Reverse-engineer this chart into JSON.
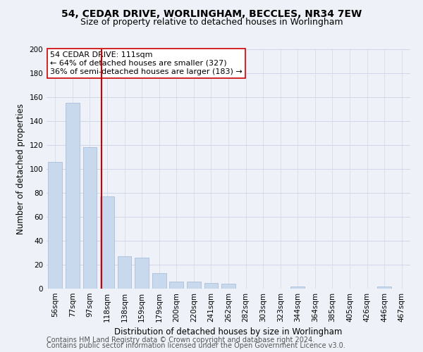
{
  "title": "54, CEDAR DRIVE, WORLINGHAM, BECCLES, NR34 7EW",
  "subtitle": "Size of property relative to detached houses in Worlingham",
  "xlabel": "Distribution of detached houses by size in Worlingham",
  "ylabel": "Number of detached properties",
  "bar_labels": [
    "56sqm",
    "77sqm",
    "97sqm",
    "118sqm",
    "138sqm",
    "159sqm",
    "179sqm",
    "200sqm",
    "220sqm",
    "241sqm",
    "262sqm",
    "282sqm",
    "303sqm",
    "323sqm",
    "344sqm",
    "364sqm",
    "385sqm",
    "405sqm",
    "426sqm",
    "446sqm",
    "467sqm"
  ],
  "bar_values": [
    106,
    155,
    118,
    77,
    27,
    26,
    13,
    6,
    6,
    5,
    4,
    0,
    0,
    0,
    2,
    0,
    0,
    0,
    0,
    2,
    0
  ],
  "bar_color": "#c8d9ed",
  "bar_edge_color": "#a0b8d8",
  "vline_color": "#cc0000",
  "annotation_text": "54 CEDAR DRIVE: 111sqm\n← 64% of detached houses are smaller (327)\n36% of semi-detached houses are larger (183) →",
  "annotation_box_color": "#ffffff",
  "annotation_box_edge": "#cc0000",
  "ylim": [
    0,
    200
  ],
  "yticks": [
    0,
    20,
    40,
    60,
    80,
    100,
    120,
    140,
    160,
    180,
    200
  ],
  "grid_color": "#d0d8e8",
  "footer1": "Contains HM Land Registry data © Crown copyright and database right 2024.",
  "footer2": "Contains public sector information licensed under the Open Government Licence v3.0.",
  "bg_color": "#eef2f8",
  "title_fontsize": 10,
  "subtitle_fontsize": 9,
  "axis_label_fontsize": 8.5,
  "tick_fontsize": 7.5,
  "annotation_fontsize": 8,
  "footer_fontsize": 7
}
